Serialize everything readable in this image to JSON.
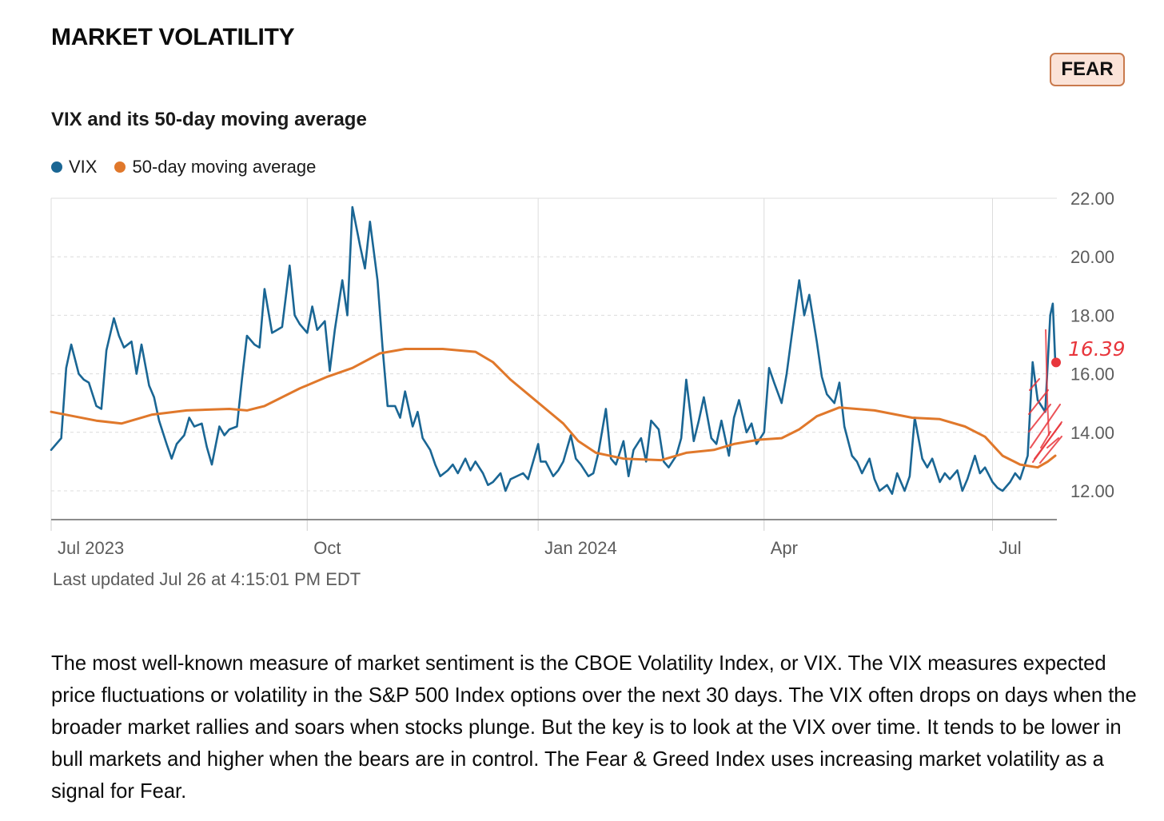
{
  "section_title": "MARKET VOLATILITY",
  "rating": "FEAR",
  "chart_title": "VIX and its 50-day moving average",
  "colors": {
    "vix": "#1a6694",
    "moving_average": "#e0782b",
    "annotation": "#e8363c",
    "badge_bg": "#fbe3d8",
    "badge_border": "#c97a4d"
  },
  "chart_data": {
    "type": "line",
    "title": "VIX and its 50-day moving average",
    "xlabel": "",
    "ylabel": "",
    "ylim": [
      11,
      22
    ],
    "yticks": [
      "22.00",
      "20.00",
      "18.00",
      "16.00",
      "14.00",
      "12.00"
    ],
    "xticks": [
      {
        "label": "Jul 2023",
        "date": "2023-06-22"
      },
      {
        "label": "Oct",
        "date": "2023-10-02"
      },
      {
        "label": "Jan 2024",
        "date": "2024-01-02"
      },
      {
        "label": "Apr",
        "date": "2024-04-01"
      },
      {
        "label": "Jul",
        "date": "2024-07-01"
      }
    ],
    "grid": true,
    "legend_position": "top-left",
    "series": [
      {
        "name": "VIX",
        "points": [
          [
            "2023-06-22",
            13.4
          ],
          [
            "2023-06-26",
            13.8
          ],
          [
            "2023-06-28",
            16.2
          ],
          [
            "2023-06-30",
            17.0
          ],
          [
            "2023-07-03",
            16.0
          ],
          [
            "2023-07-05",
            15.8
          ],
          [
            "2023-07-07",
            15.7
          ],
          [
            "2023-07-10",
            14.9
          ],
          [
            "2023-07-12",
            14.8
          ],
          [
            "2023-07-14",
            16.8
          ],
          [
            "2023-07-17",
            17.9
          ],
          [
            "2023-07-19",
            17.3
          ],
          [
            "2023-07-21",
            16.9
          ],
          [
            "2023-07-24",
            17.1
          ],
          [
            "2023-07-26",
            16.0
          ],
          [
            "2023-07-28",
            17.0
          ],
          [
            "2023-07-31",
            15.6
          ],
          [
            "2023-08-02",
            15.2
          ],
          [
            "2023-08-04",
            14.4
          ],
          [
            "2023-08-07",
            13.6
          ],
          [
            "2023-08-09",
            13.1
          ],
          [
            "2023-08-11",
            13.6
          ],
          [
            "2023-08-14",
            13.9
          ],
          [
            "2023-08-16",
            14.5
          ],
          [
            "2023-08-18",
            14.2
          ],
          [
            "2023-08-21",
            14.3
          ],
          [
            "2023-08-23",
            13.5
          ],
          [
            "2023-08-25",
            12.9
          ],
          [
            "2023-08-28",
            14.2
          ],
          [
            "2023-08-30",
            13.9
          ],
          [
            "2023-09-01",
            14.1
          ],
          [
            "2023-09-04",
            14.2
          ],
          [
            "2023-09-06",
            15.8
          ],
          [
            "2023-09-08",
            17.3
          ],
          [
            "2023-09-11",
            17.0
          ],
          [
            "2023-09-13",
            16.9
          ],
          [
            "2023-09-15",
            18.9
          ],
          [
            "2023-09-18",
            17.4
          ],
          [
            "2023-09-20",
            17.5
          ],
          [
            "2023-09-22",
            17.6
          ],
          [
            "2023-09-25",
            19.7
          ],
          [
            "2023-09-27",
            18.0
          ],
          [
            "2023-09-29",
            17.7
          ],
          [
            "2023-10-02",
            17.4
          ],
          [
            "2023-10-04",
            18.3
          ],
          [
            "2023-10-06",
            17.5
          ],
          [
            "2023-10-09",
            17.8
          ],
          [
            "2023-10-11",
            16.1
          ],
          [
            "2023-10-13",
            17.5
          ],
          [
            "2023-10-16",
            19.2
          ],
          [
            "2023-10-18",
            18.0
          ],
          [
            "2023-10-20",
            21.7
          ],
          [
            "2023-10-23",
            20.4
          ],
          [
            "2023-10-25",
            19.6
          ],
          [
            "2023-10-27",
            21.2
          ],
          [
            "2023-10-30",
            19.2
          ],
          [
            "2023-11-01",
            16.9
          ],
          [
            "2023-11-03",
            14.9
          ],
          [
            "2023-11-06",
            14.9
          ],
          [
            "2023-11-08",
            14.5
          ],
          [
            "2023-11-10",
            15.4
          ],
          [
            "2023-11-13",
            14.2
          ],
          [
            "2023-11-15",
            14.7
          ],
          [
            "2023-11-17",
            13.8
          ],
          [
            "2023-11-20",
            13.4
          ],
          [
            "2023-11-22",
            12.9
          ],
          [
            "2023-11-24",
            12.5
          ],
          [
            "2023-11-27",
            12.7
          ],
          [
            "2023-11-29",
            12.9
          ],
          [
            "2023-12-01",
            12.6
          ],
          [
            "2023-12-04",
            13.1
          ],
          [
            "2023-12-06",
            12.7
          ],
          [
            "2023-12-08",
            13.0
          ],
          [
            "2023-12-11",
            12.6
          ],
          [
            "2023-12-13",
            12.2
          ],
          [
            "2023-12-15",
            12.3
          ],
          [
            "2023-12-18",
            12.6
          ],
          [
            "2023-12-20",
            12.0
          ],
          [
            "2023-12-22",
            12.4
          ],
          [
            "2023-12-27",
            12.6
          ],
          [
            "2023-12-29",
            12.4
          ],
          [
            "2024-01-02",
            13.6
          ],
          [
            "2024-01-03",
            13.0
          ],
          [
            "2024-01-05",
            13.0
          ],
          [
            "2024-01-08",
            12.5
          ],
          [
            "2024-01-10",
            12.7
          ],
          [
            "2024-01-12",
            13.0
          ],
          [
            "2024-01-15",
            13.9
          ],
          [
            "2024-01-17",
            13.1
          ],
          [
            "2024-01-19",
            12.9
          ],
          [
            "2024-01-22",
            12.5
          ],
          [
            "2024-01-24",
            12.6
          ],
          [
            "2024-01-26",
            13.3
          ],
          [
            "2024-01-29",
            14.8
          ],
          [
            "2024-01-31",
            13.1
          ],
          [
            "2024-02-02",
            12.9
          ],
          [
            "2024-02-05",
            13.7
          ],
          [
            "2024-02-07",
            12.5
          ],
          [
            "2024-02-09",
            13.4
          ],
          [
            "2024-02-12",
            13.8
          ],
          [
            "2024-02-14",
            13.0
          ],
          [
            "2024-02-16",
            14.4
          ],
          [
            "2024-02-19",
            14.1
          ],
          [
            "2024-02-21",
            13.0
          ],
          [
            "2024-02-23",
            12.8
          ],
          [
            "2024-02-26",
            13.2
          ],
          [
            "2024-02-28",
            13.8
          ],
          [
            "2024-03-01",
            15.8
          ],
          [
            "2024-03-04",
            13.7
          ],
          [
            "2024-03-06",
            14.4
          ],
          [
            "2024-03-08",
            15.2
          ],
          [
            "2024-03-11",
            13.8
          ],
          [
            "2024-03-13",
            13.6
          ],
          [
            "2024-03-15",
            14.4
          ],
          [
            "2024-03-18",
            13.2
          ],
          [
            "2024-03-20",
            14.5
          ],
          [
            "2024-03-22",
            15.1
          ],
          [
            "2024-03-25",
            14.0
          ],
          [
            "2024-03-27",
            14.3
          ],
          [
            "2024-03-29",
            13.6
          ],
          [
            "2024-04-01",
            14.0
          ],
          [
            "2024-04-03",
            16.2
          ],
          [
            "2024-04-05",
            15.7
          ],
          [
            "2024-04-08",
            15.0
          ],
          [
            "2024-04-10",
            16.0
          ],
          [
            "2024-04-12",
            17.3
          ],
          [
            "2024-04-15",
            19.2
          ],
          [
            "2024-04-17",
            18.0
          ],
          [
            "2024-04-19",
            18.7
          ],
          [
            "2024-04-22",
            17.1
          ],
          [
            "2024-04-24",
            15.9
          ],
          [
            "2024-04-26",
            15.3
          ],
          [
            "2024-04-29",
            15.0
          ],
          [
            "2024-05-01",
            15.7
          ],
          [
            "2024-05-03",
            14.2
          ],
          [
            "2024-05-06",
            13.2
          ],
          [
            "2024-05-08",
            13.0
          ],
          [
            "2024-05-10",
            12.6
          ],
          [
            "2024-05-13",
            13.1
          ],
          [
            "2024-05-15",
            12.4
          ],
          [
            "2024-05-17",
            12.0
          ],
          [
            "2024-05-20",
            12.2
          ],
          [
            "2024-05-22",
            11.9
          ],
          [
            "2024-05-24",
            12.6
          ],
          [
            "2024-05-27",
            12.0
          ],
          [
            "2024-05-29",
            12.5
          ],
          [
            "2024-05-31",
            14.5
          ],
          [
            "2024-06-03",
            13.1
          ],
          [
            "2024-06-05",
            12.8
          ],
          [
            "2024-06-07",
            13.1
          ],
          [
            "2024-06-10",
            12.3
          ],
          [
            "2024-06-12",
            12.6
          ],
          [
            "2024-06-14",
            12.4
          ],
          [
            "2024-06-17",
            12.7
          ],
          [
            "2024-06-19",
            12.0
          ],
          [
            "2024-06-21",
            12.4
          ],
          [
            "2024-06-24",
            13.2
          ],
          [
            "2024-06-26",
            12.6
          ],
          [
            "2024-06-28",
            12.8
          ],
          [
            "2024-07-01",
            12.3
          ],
          [
            "2024-07-03",
            12.1
          ],
          [
            "2024-07-05",
            12.0
          ],
          [
            "2024-07-08",
            12.3
          ],
          [
            "2024-07-10",
            12.6
          ],
          [
            "2024-07-12",
            12.4
          ],
          [
            "2024-07-15",
            13.2
          ],
          [
            "2024-07-17",
            16.4
          ],
          [
            "2024-07-19",
            15.1
          ],
          [
            "2024-07-22",
            14.7
          ],
          [
            "2024-07-24",
            18.0
          ],
          [
            "2024-07-25",
            18.4
          ],
          [
            "2024-07-26",
            16.4
          ]
        ]
      },
      {
        "name": "50-day moving average",
        "points": [
          [
            "2023-06-22",
            14.7
          ],
          [
            "2023-07-10",
            14.4
          ],
          [
            "2023-07-20",
            14.3
          ],
          [
            "2023-08-01",
            14.6
          ],
          [
            "2023-08-15",
            14.75
          ],
          [
            "2023-09-01",
            14.8
          ],
          [
            "2023-09-08",
            14.75
          ],
          [
            "2023-09-15",
            14.9
          ],
          [
            "2023-09-29",
            15.5
          ],
          [
            "2023-10-10",
            15.9
          ],
          [
            "2023-10-20",
            16.2
          ],
          [
            "2023-10-31",
            16.7
          ],
          [
            "2023-11-10",
            16.85
          ],
          [
            "2023-11-25",
            16.85
          ],
          [
            "2023-12-08",
            16.75
          ],
          [
            "2023-12-15",
            16.4
          ],
          [
            "2023-12-22",
            15.8
          ],
          [
            "2023-12-29",
            15.3
          ],
          [
            "2024-01-05",
            14.8
          ],
          [
            "2024-01-12",
            14.3
          ],
          [
            "2024-01-18",
            13.7
          ],
          [
            "2024-01-25",
            13.3
          ],
          [
            "2024-02-05",
            13.1
          ],
          [
            "2024-02-20",
            13.05
          ],
          [
            "2024-03-01",
            13.3
          ],
          [
            "2024-03-12",
            13.4
          ],
          [
            "2024-03-20",
            13.6
          ],
          [
            "2024-03-30",
            13.75
          ],
          [
            "2024-04-08",
            13.8
          ],
          [
            "2024-04-15",
            14.1
          ],
          [
            "2024-04-22",
            14.55
          ],
          [
            "2024-05-01",
            14.85
          ],
          [
            "2024-05-15",
            14.75
          ],
          [
            "2024-05-30",
            14.5
          ],
          [
            "2024-06-10",
            14.45
          ],
          [
            "2024-06-20",
            14.2
          ],
          [
            "2024-06-28",
            13.85
          ],
          [
            "2024-07-05",
            13.2
          ],
          [
            "2024-07-12",
            12.9
          ],
          [
            "2024-07-19",
            12.8
          ],
          [
            "2024-07-23",
            13.0
          ],
          [
            "2024-07-26",
            13.2
          ]
        ]
      }
    ],
    "annotation": {
      "label": "16.39",
      "date": "2024-07-26",
      "value": 16.39
    }
  },
  "last_updated": "Last updated Jul 26 at 4:15:01 PM EDT",
  "description": "The most well-known measure of market sentiment is the CBOE Volatility Index, or VIX. The VIX measures expected price fluctuations or volatility in the S&P 500 Index options over the next 30 days. The VIX often drops on days when the broader market rallies and soars when stocks plunge. But the key is to look at the VIX over time. It tends to be lower in bull markets and higher when the bears are in control. The Fear & Greed Index uses increasing market volatility as a signal for Fear."
}
